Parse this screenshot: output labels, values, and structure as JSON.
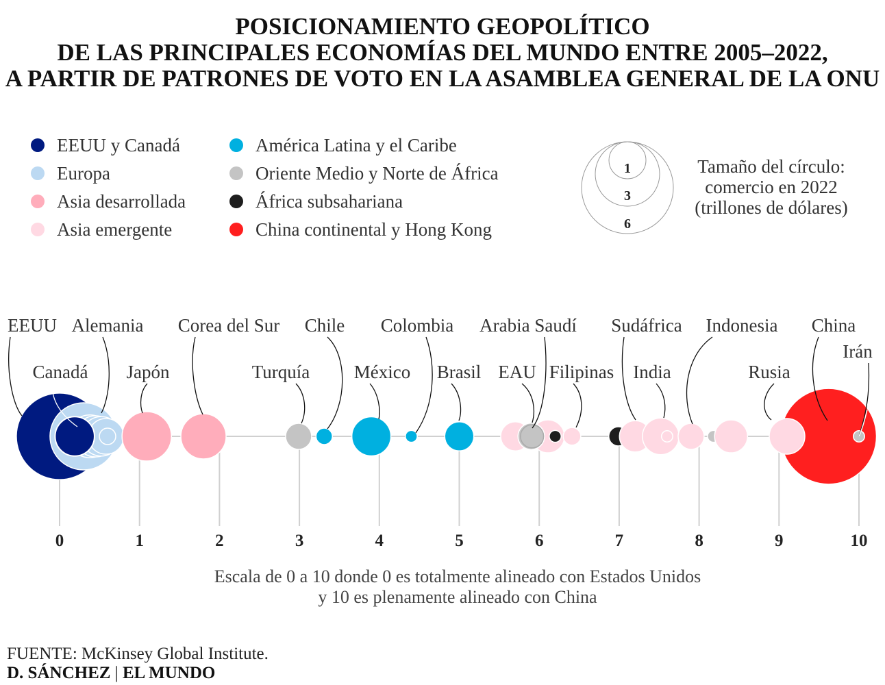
{
  "chart_data": {
    "type": "scatter",
    "title": [
      "POSICIONAMIENTO GEOPOLÍTICO",
      "DE LAS PRINCIPALES ECONOMÍAS DEL MUNDO ENTRE 2005–2022,",
      "A PARTIR DE PATRONES DE VOTO EN LA ASAMBLEA GENERAL DE LA ONU"
    ],
    "xlim": [
      0,
      10
    ],
    "xticks": [
      "0",
      "1",
      "2",
      "3",
      "4",
      "5",
      "6",
      "7",
      "8",
      "9",
      "10"
    ],
    "xlabel": [
      "Escala de 0 a 10 donde 0 es totalmente alineado con Estados Unidos",
      "y 10 es plenamente alineado con China"
    ],
    "size_legend": {
      "title": [
        "Tamaño del círculo:",
        "comercio en 2022",
        "(trillones de dólares)"
      ],
      "values": [
        6,
        3,
        1
      ]
    },
    "groups": [
      {
        "name": "EEUU y Canadá",
        "color": "#001a80"
      },
      {
        "name": "Europa",
        "color": "#bcd9f2"
      },
      {
        "name": "Asia desarrollada",
        "color": "#ffadbb"
      },
      {
        "name": "Asia emergente",
        "color": "#ffd9e3"
      },
      {
        "name": "América Latina y el Caribe",
        "color": "#00b0e0"
      },
      {
        "name": "Oriente Medio y Norte de África",
        "color": "#c4c4c4"
      },
      {
        "name": "África subsahariana",
        "color": "#1e1e1e"
      },
      {
        "name": "China continental y Hong Kong",
        "color": "#ff1f1f"
      }
    ],
    "points": [
      {
        "label": "EEUU",
        "group": 0,
        "x": 0.0,
        "trade": 5.3
      },
      {
        "label": "Alemania",
        "group": 1,
        "x": 0.3,
        "trade": 3.2
      },
      {
        "label": "",
        "group": 1,
        "x": 0.38,
        "trade": 1.3
      },
      {
        "label": "",
        "group": 1,
        "x": 0.45,
        "trade": 1.2
      },
      {
        "label": "",
        "group": 1,
        "x": 0.52,
        "trade": 1.1
      },
      {
        "label": "",
        "group": 1,
        "x": 0.58,
        "trade": 0.9
      },
      {
        "label": "Canadá",
        "group": 0,
        "x": 0.19,
        "trade": 1.1
      },
      {
        "label": "",
        "group": 1,
        "x": 0.6,
        "trade": 0.19
      },
      {
        "label": "Japón",
        "group": 2,
        "x": 1.09,
        "trade": 1.73
      },
      {
        "label": "Corea del Sur",
        "group": 2,
        "x": 1.8,
        "trade": 1.45
      },
      {
        "label": "Turquía",
        "group": 5,
        "x": 2.99,
        "trade": 0.48
      },
      {
        "label": "Chile",
        "group": 4,
        "x": 3.31,
        "trade": 0.19
      },
      {
        "label": "México",
        "group": 4,
        "x": 3.9,
        "trade": 1.08
      },
      {
        "label": "Colombia",
        "group": 4,
        "x": 4.4,
        "trade": 0.1
      },
      {
        "label": "Brasil",
        "group": 4,
        "x": 5.0,
        "trade": 0.6
      },
      {
        "label": "",
        "group": 3,
        "x": 5.7,
        "trade": 0.6
      },
      {
        "label": "",
        "group": 3,
        "x": 6.11,
        "trade": 0.77
      },
      {
        "label": "EAU",
        "group": 5,
        "x": 5.9,
        "trade": 0.5
      },
      {
        "label": "Arabia Saudí",
        "group": 5,
        "x": 5.91,
        "trade": 0.38
      },
      {
        "label": "",
        "group": 6,
        "x": 6.2,
        "trade": 0.1
      },
      {
        "label": "Filipinas",
        "group": 3,
        "x": 6.41,
        "trade": 0.22
      },
      {
        "label": "",
        "group": 6,
        "x": 6.99,
        "trade": 0.26
      },
      {
        "label": "Sudáfrica",
        "group": 3,
        "x": 7.2,
        "trade": 0.7
      },
      {
        "label": "India",
        "group": 3,
        "x": 7.52,
        "trade": 0.95
      },
      {
        "label": "",
        "group": 3,
        "x": 7.6,
        "trade": 0.09
      },
      {
        "label": "Indonesia",
        "group": 3,
        "x": 7.9,
        "trade": 0.48
      },
      {
        "label": "",
        "group": 5,
        "x": 8.18,
        "trade": 0.1
      },
      {
        "label": "",
        "group": 3,
        "x": 8.4,
        "trade": 0.77
      },
      {
        "label": "China",
        "group": 7,
        "x": 9.62,
        "trade": 6.5
      },
      {
        "label": "Rusia",
        "group": 3,
        "x": 9.1,
        "trade": 0.9
      },
      {
        "label": "Irán",
        "group": 5,
        "x": 10.0,
        "trade": 0.09
      }
    ]
  },
  "footer": {
    "source_label": "FUENTE:",
    "source": "McKinsey Global Institute.",
    "credit_author": "D. SÁNCHEZ",
    "credit_sep": "|",
    "credit_outlet": "EL MUNDO"
  }
}
